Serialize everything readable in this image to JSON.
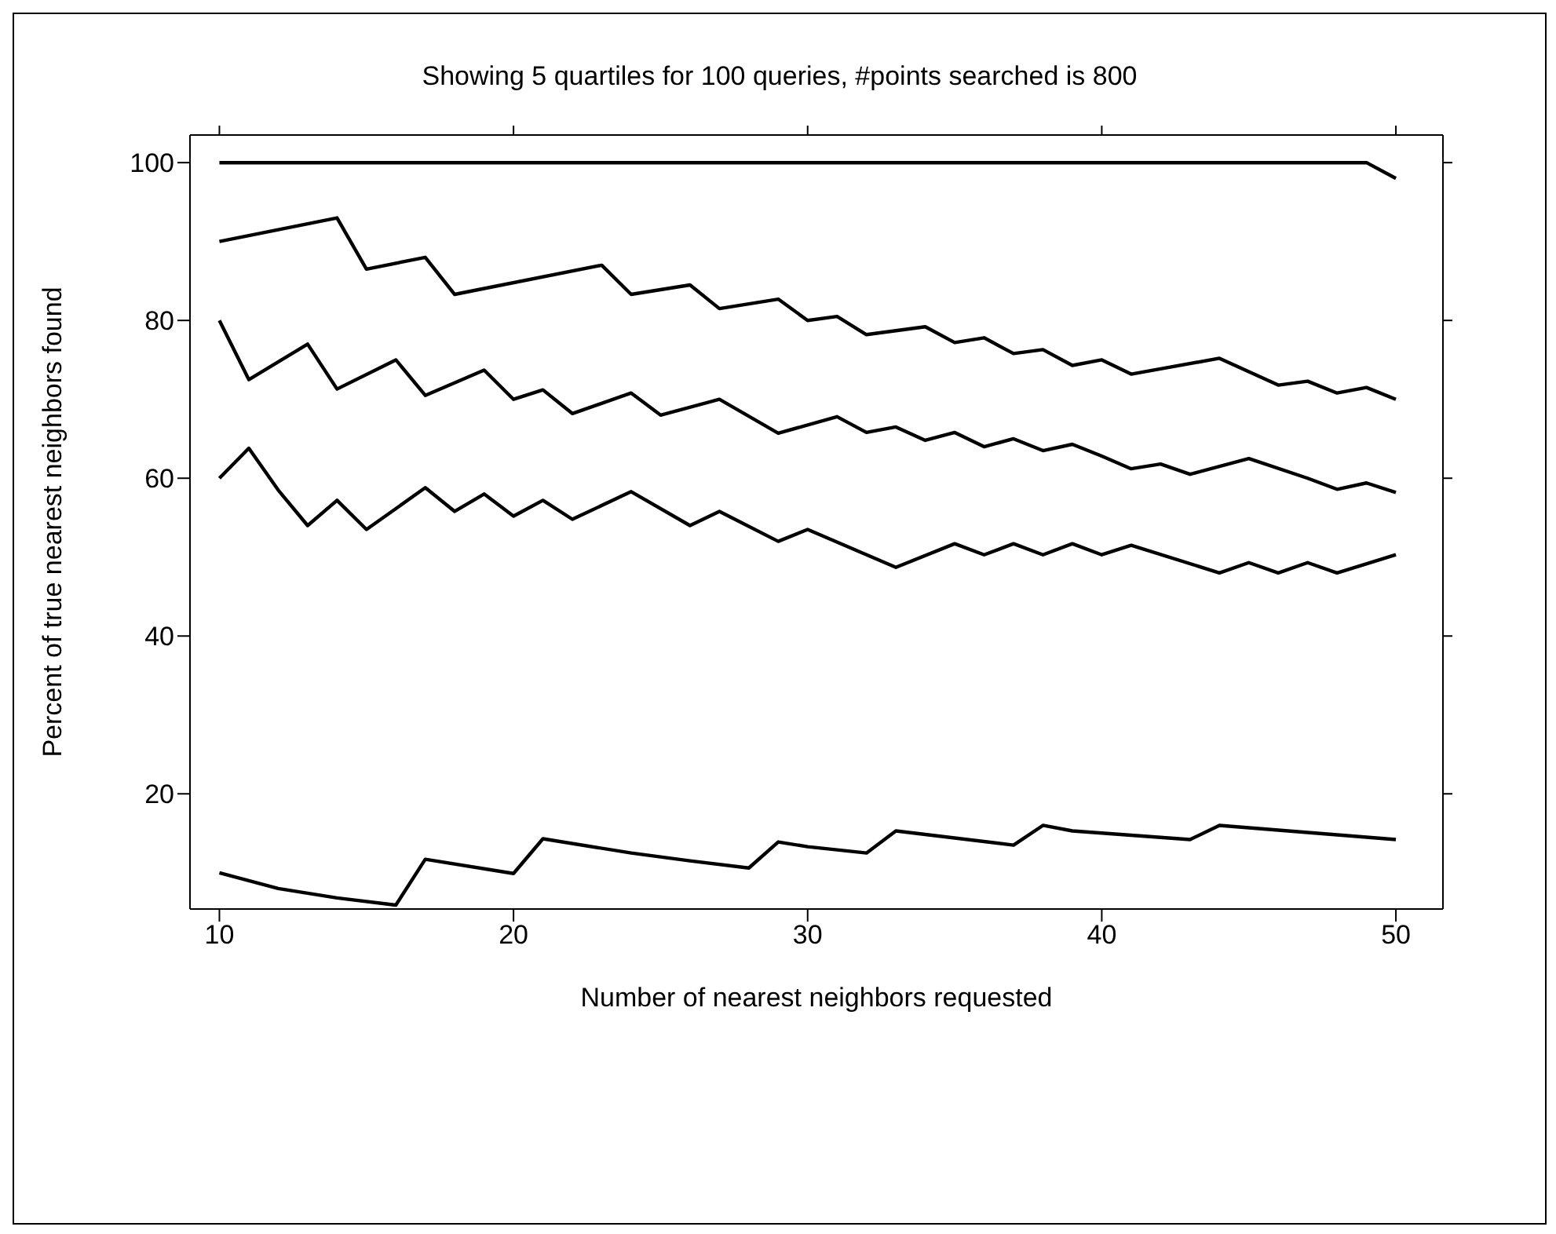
{
  "chart_data": {
    "type": "line",
    "title": "Showing 5 quartiles for 100 queries, #points searched is 800",
    "xlabel": "Number of nearest neighbors requested",
    "ylabel": "Percent of true nearest neighbors found",
    "xlim": [
      9,
      51.6
    ],
    "ylim": [
      5.4,
      103.5
    ],
    "xticks": [
      10,
      20,
      30,
      40,
      50
    ],
    "yticks": [
      20,
      40,
      60,
      80,
      100
    ],
    "marker": "none",
    "line_style": "solid",
    "series": [
      {
        "color": "#000000",
        "x": [
          10,
          49,
          50
        ],
        "values": [
          100,
          100,
          98
        ]
      },
      {
        "color": "#000000",
        "x": [
          10,
          14,
          15,
          17,
          18,
          23,
          24,
          26,
          27,
          29,
          30,
          31,
          32,
          34,
          35,
          36,
          37,
          38,
          39,
          40,
          41,
          44,
          46,
          47,
          48,
          49,
          50
        ],
        "values": [
          90,
          93,
          86.5,
          88,
          83.3,
          87,
          83.3,
          84.5,
          81.5,
          82.7,
          80,
          80.5,
          78.2,
          79.2,
          77.2,
          77.8,
          75.8,
          76.3,
          74.3,
          75,
          73.2,
          75.2,
          71.8,
          72.3,
          70.8,
          71.5,
          70
        ]
      },
      {
        "color": "#000000",
        "x": [
          10,
          11,
          13,
          14,
          16,
          17,
          19,
          20,
          21,
          22,
          24,
          25,
          27,
          29,
          31,
          32,
          33,
          34,
          35,
          36,
          37,
          38,
          39,
          40,
          41,
          42,
          43,
          45,
          47,
          48,
          49,
          50
        ],
        "values": [
          80,
          72.5,
          77,
          71.3,
          75,
          70.5,
          73.7,
          70,
          71.2,
          68.2,
          70.8,
          68,
          70,
          65.7,
          67.8,
          65.8,
          66.5,
          64.8,
          65.8,
          64,
          65,
          63.5,
          64.3,
          62.8,
          61.2,
          61.8,
          60.5,
          62.5,
          60,
          58.6,
          59.4,
          58.2
        ]
      },
      {
        "color": "#000000",
        "x": [
          10,
          11,
          12,
          13,
          14,
          15,
          17,
          18,
          19,
          20,
          21,
          22,
          24,
          26,
          27,
          29,
          30,
          33,
          35,
          36,
          37,
          38,
          39,
          40,
          41,
          44,
          45,
          46,
          47,
          48,
          50
        ],
        "values": [
          60,
          63.8,
          58.5,
          54,
          57.2,
          53.5,
          58.8,
          55.8,
          58,
          55.2,
          57.2,
          54.8,
          58.3,
          54,
          55.8,
          52,
          53.5,
          48.7,
          51.7,
          50.3,
          51.7,
          50.3,
          51.7,
          50.3,
          51.5,
          48,
          49.3,
          48,
          49.3,
          48,
          50.3
        ]
      },
      {
        "color": "#000000",
        "x": [
          10,
          12,
          14,
          16,
          17,
          20,
          21,
          24,
          26,
          28,
          29,
          30,
          32,
          33,
          37,
          38,
          39,
          43,
          44,
          50
        ],
        "values": [
          10,
          8,
          6.8,
          5.9,
          11.7,
          9.9,
          14.3,
          12.5,
          11.5,
          10.6,
          13.9,
          13.3,
          12.5,
          15.3,
          13.5,
          16,
          15.3,
          14.2,
          16,
          14.2
        ]
      }
    ]
  }
}
